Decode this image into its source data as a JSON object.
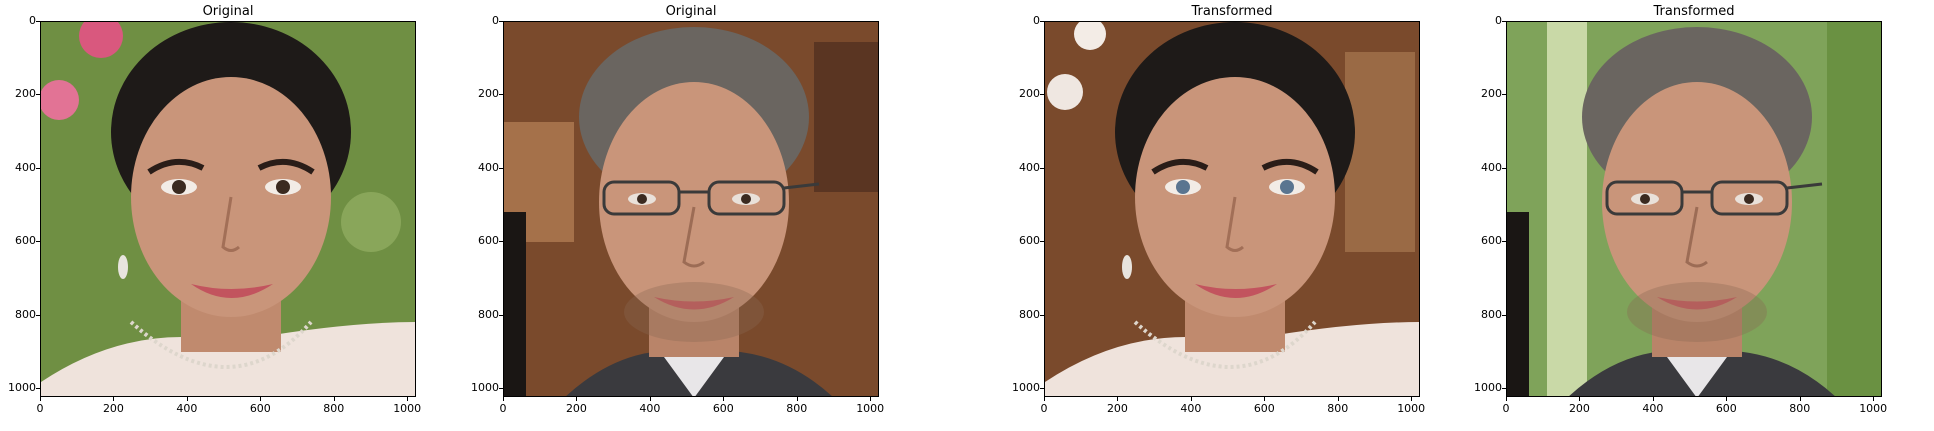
{
  "figure": {
    "panels": [
      {
        "title": "Original",
        "subject": "woman",
        "background": "flowers"
      },
      {
        "title": "Original",
        "subject": "man-glasses",
        "background": "wood"
      },
      {
        "title": "Transformed",
        "subject": "woman",
        "background": "wood"
      },
      {
        "title": "Transformed",
        "subject": "man-glasses",
        "background": "green"
      }
    ],
    "yticks": [
      "0",
      "200",
      "400",
      "600",
      "800",
      "1000"
    ],
    "xticks": [
      "0",
      "200",
      "400",
      "600",
      "800",
      "1000"
    ],
    "image_extent": 1024
  },
  "colors": {
    "skin": "#c9957a",
    "hair_dark": "#1e1a18",
    "hair_gray": "#6a6560",
    "bg_flowers": "#6f8f43",
    "bg_wood": "#7a4a2c",
    "bg_green": "#7fa35a"
  }
}
